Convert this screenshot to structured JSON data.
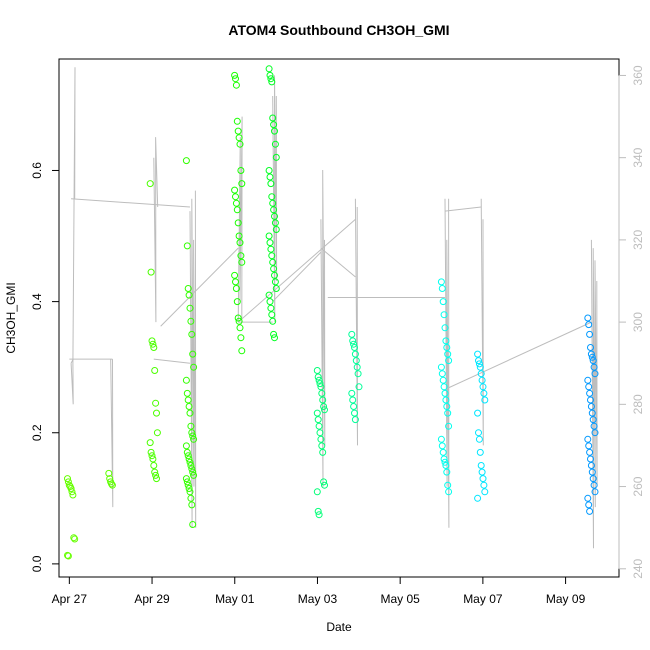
{
  "chart_data": {
    "type": "scatter",
    "title": "ATOM4 Southbound CH3OH_GMI",
    "xlabel": "Date",
    "ylabel": "CH3OH_GMI",
    "x_axis": {
      "unit": "date",
      "range": [
        "2018-04-26T18:00",
        "2018-05-10T07:00"
      ],
      "ticks": [
        {
          "x": "2018-04-27",
          "label": "Apr 27"
        },
        {
          "x": "2018-04-29",
          "label": "Apr 29"
        },
        {
          "x": "2018-05-01",
          "label": "May 01"
        },
        {
          "x": "2018-05-03",
          "label": "May 03"
        },
        {
          "x": "2018-05-05",
          "label": "May 05"
        },
        {
          "x": "2018-05-07",
          "label": "May 07"
        },
        {
          "x": "2018-05-09",
          "label": "May 09"
        }
      ]
    },
    "y_axis": {
      "range": [
        -0.02,
        0.77
      ],
      "ticks": [
        {
          "y": 0.0,
          "label": "0.0"
        },
        {
          "y": 0.2,
          "label": "0.2"
        },
        {
          "y": 0.4,
          "label": "0.4"
        },
        {
          "y": 0.6,
          "label": "0.6"
        }
      ]
    },
    "y2_axis": {
      "range": [
        238,
        364
      ],
      "color": "#bdbdbd",
      "ticks": [
        {
          "y": 240,
          "label": "240"
        },
        {
          "y": 260,
          "label": "260"
        },
        {
          "y": 280,
          "label": "280"
        },
        {
          "y": 300,
          "label": "300"
        },
        {
          "y": 320,
          "label": "320"
        },
        {
          "y": 340,
          "label": "340"
        },
        {
          "y": 360,
          "label": "360"
        }
      ]
    },
    "grid": false,
    "legend": "none",
    "point_clusters": [
      {
        "x": "2018-04-27T01:00",
        "values": [
          0.13,
          0.125,
          0.12,
          0.118,
          0.115,
          0.11,
          0.105,
          0.04,
          0.038,
          0.013,
          0.012
        ],
        "color": "#66ff00"
      },
      {
        "x": "2018-04-28T01:00",
        "values": [
          0.138,
          0.13,
          0.125,
          0.122,
          0.12
        ],
        "color": "#5fff00"
      },
      {
        "x": "2018-04-29T01:00",
        "values": [
          0.58,
          0.445,
          0.34,
          0.335,
          0.33,
          0.295,
          0.245,
          0.23,
          0.2,
          0.185,
          0.17,
          0.165,
          0.16,
          0.15,
          0.14,
          0.135,
          0.13
        ],
        "color": "#4cff00"
      },
      {
        "x": "2018-04-29T22:00",
        "values": [
          0.615,
          0.485,
          0.42,
          0.41,
          0.39,
          0.37,
          0.35,
          0.32,
          0.3,
          0.28,
          0.26,
          0.25,
          0.24,
          0.23,
          0.21,
          0.2,
          0.195,
          0.19,
          0.18,
          0.17,
          0.165,
          0.16,
          0.155,
          0.15,
          0.145,
          0.14,
          0.135,
          0.13,
          0.125,
          0.12,
          0.115,
          0.11,
          0.1,
          0.09,
          0.06
        ],
        "color": "#33ff00"
      },
      {
        "x": "2018-05-01T02:00",
        "values": [
          0.745,
          0.74,
          0.73,
          0.675,
          0.66,
          0.65,
          0.64,
          0.6,
          0.58,
          0.57,
          0.56,
          0.55,
          0.54,
          0.52,
          0.5,
          0.49,
          0.47,
          0.46,
          0.44,
          0.43,
          0.42,
          0.4,
          0.375,
          0.37,
          0.36,
          0.345,
          0.325
        ],
        "color": "#1aff00"
      },
      {
        "x": "2018-05-01T22:00",
        "values": [
          0.755,
          0.745,
          0.74,
          0.735,
          0.68,
          0.67,
          0.66,
          0.64,
          0.62,
          0.6,
          0.59,
          0.58,
          0.56,
          0.55,
          0.54,
          0.53,
          0.52,
          0.51,
          0.5,
          0.49,
          0.48,
          0.47,
          0.46,
          0.45,
          0.44,
          0.43,
          0.42,
          0.41,
          0.4,
          0.39,
          0.38,
          0.37,
          0.35,
          0.345
        ],
        "color": "#00ff22"
      },
      {
        "x": "2018-05-03T02:00",
        "values": [
          0.295,
          0.285,
          0.28,
          0.275,
          0.27,
          0.26,
          0.25,
          0.24,
          0.235,
          0.23,
          0.22,
          0.21,
          0.2,
          0.19,
          0.18,
          0.17,
          0.125,
          0.12,
          0.11,
          0.08,
          0.075
        ],
        "color": "#00ff77"
      },
      {
        "x": "2018-05-03T22:00",
        "values": [
          0.35,
          0.34,
          0.335,
          0.33,
          0.32,
          0.31,
          0.3,
          0.29,
          0.27,
          0.26,
          0.25,
          0.24,
          0.23,
          0.22
        ],
        "color": "#00ff99"
      },
      {
        "x": "2018-05-06T02:00",
        "values": [
          0.43,
          0.42,
          0.4,
          0.38,
          0.36,
          0.34,
          0.33,
          0.32,
          0.31,
          0.3,
          0.29,
          0.28,
          0.27,
          0.26,
          0.25,
          0.24,
          0.23,
          0.21,
          0.19,
          0.18,
          0.17,
          0.16,
          0.155,
          0.15,
          0.14,
          0.12,
          0.11
        ],
        "color": "#00ffee"
      },
      {
        "x": "2018-05-06T23:00",
        "values": [
          0.32,
          0.31,
          0.305,
          0.3,
          0.29,
          0.28,
          0.27,
          0.26,
          0.25,
          0.23,
          0.2,
          0.19,
          0.17,
          0.15,
          0.14,
          0.13,
          0.12,
          0.11,
          0.1
        ],
        "color": "#00e6ff"
      },
      {
        "x": "2018-05-09T15:00",
        "values": [
          0.375,
          0.365,
          0.35,
          0.33,
          0.32,
          0.315,
          0.31,
          0.3,
          0.29,
          0.28,
          0.27,
          0.26,
          0.25,
          0.24,
          0.23,
          0.22,
          0.21,
          0.2,
          0.19,
          0.18,
          0.17,
          0.16,
          0.15,
          0.14,
          0.13,
          0.12,
          0.11,
          0.1,
          0.09,
          0.08
        ],
        "color": "#0099ff"
      }
    ],
    "secondary_series": {
      "axis": "right",
      "color": "#bdbdbd",
      "profiles": [
        {
          "x": "2018-04-27T01:00",
          "y2": [
            290,
            280,
            290,
            362,
            330
          ]
        },
        {
          "x": "2018-04-27T01:00",
          "y2": [
            290,
            291
          ]
        },
        {
          "x": "2018-04-28T00:00",
          "y2": [
            291,
            255,
            291
          ]
        },
        {
          "x": "2018-04-29T01:00",
          "y2": [
            340,
            300,
            345,
            328
          ]
        },
        {
          "x": "2018-04-29T22:00",
          "y2": [
            327,
            250,
            330,
            260,
            320,
            250,
            332
          ]
        },
        {
          "x": "2018-05-01T02:00",
          "y2": [
            300,
            345,
            305,
            350,
            300
          ]
        },
        {
          "x": "2018-05-01T22:00",
          "y2": [
            355,
            300,
            360,
            310,
            355
          ]
        },
        {
          "x": "2018-05-03T02:00",
          "y2": [
            325,
            260,
            337,
            270,
            320
          ]
        },
        {
          "x": "2018-05-03T22:00",
          "y2": [
            330,
            270,
            328
          ]
        },
        {
          "x": "2018-05-06T02:00",
          "y2": [
            330,
            260,
            320,
            250,
            330
          ]
        },
        {
          "x": "2018-05-06T23:00",
          "y2": [
            330,
            270,
            325
          ]
        },
        {
          "x": "2018-05-09T15:00",
          "y2": [
            320,
            245,
            318,
            255,
            315,
            260,
            310
          ]
        }
      ],
      "connectors": [
        {
          "x": [
            "2018-04-27T00:00",
            "2018-04-28T01:00"
          ],
          "y2": [
            291,
            291
          ]
        },
        {
          "x": [
            "2018-04-27T01:00",
            "2018-04-29T22:00"
          ],
          "y2": [
            330,
            328
          ]
        },
        {
          "x": [
            "2018-04-29T01:00",
            "2018-04-29T22:00"
          ],
          "y2": [
            291,
            290
          ]
        },
        {
          "x": [
            "2018-04-29T05:00",
            "2018-05-01T02:00"
          ],
          "y2": [
            299,
            318
          ]
        },
        {
          "x": [
            "2018-05-01T02:00",
            "2018-05-01T22:00"
          ],
          "y2": [
            300,
            300
          ]
        },
        {
          "x": [
            "2018-05-01T02:00",
            "2018-05-03T22:00"
          ],
          "y2": [
            300,
            325
          ]
        },
        {
          "x": [
            "2018-05-01T22:00",
            "2018-05-03T02:00"
          ],
          "y2": [
            305,
            317
          ]
        },
        {
          "x": [
            "2018-05-03T02:00",
            "2018-05-03T22:00"
          ],
          "y2": [
            318,
            311
          ]
        },
        {
          "x": [
            "2018-05-03T06:00",
            "2018-05-06T02:00"
          ],
          "y2": [
            306,
            306
          ]
        },
        {
          "x": [
            "2018-05-06T02:00",
            "2018-05-06T23:00"
          ],
          "y2": [
            327,
            328
          ]
        },
        {
          "x": [
            "2018-05-06T04:00",
            "2018-05-09T15:00"
          ],
          "y2": [
            284,
            300
          ]
        }
      ]
    }
  }
}
